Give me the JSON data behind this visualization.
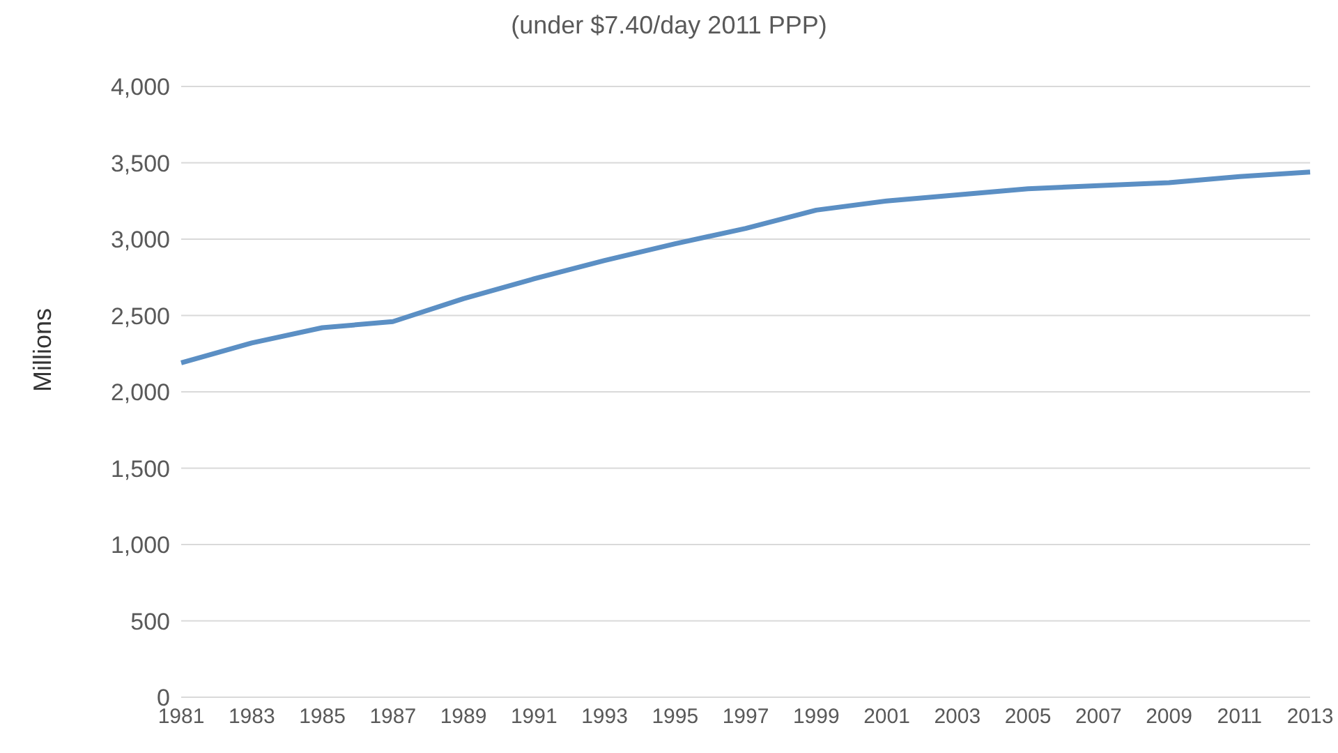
{
  "chart_data": {
    "type": "line",
    "subtitle": "(under $7.40/day 2011 PPP)",
    "ylabel": "Millions",
    "categories": [
      "1981",
      "1983",
      "1985",
      "1987",
      "1989",
      "1991",
      "1993",
      "1995",
      "1997",
      "1999",
      "2001",
      "2003",
      "2005",
      "2007",
      "2009",
      "2011",
      "2013"
    ],
    "series": [
      {
        "color": "#5b8fc4",
        "values": [
          2190,
          2320,
          2420,
          2460,
          2610,
          2740,
          2860,
          2970,
          3070,
          3190,
          3250,
          3290,
          3330,
          3350,
          3370,
          3410,
          3440
        ]
      }
    ],
    "ylim": [
      0,
      4000
    ],
    "yticks": [
      0,
      500,
      {
        "value": 1000,
        "label": "1,000"
      },
      {
        "value": 1500,
        "label": "1,500"
      },
      {
        "value": 2000,
        "label": "2,000"
      },
      {
        "value": 2500,
        "label": "2,500"
      },
      {
        "value": 3000,
        "label": "3,000"
      },
      {
        "value": 3500,
        "label": "3,500"
      },
      {
        "value": 4000,
        "label": "4,000"
      }
    ],
    "grid": "y",
    "legend": false,
    "marker": "none",
    "line_style": "solid"
  }
}
